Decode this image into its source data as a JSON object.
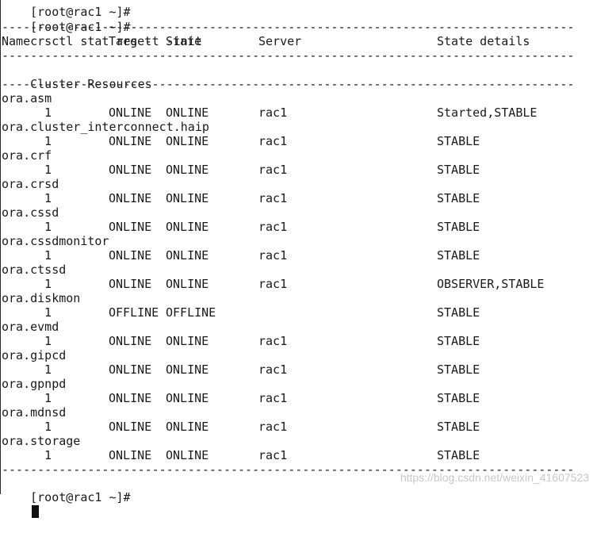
{
  "prev_prompt": "[root@rac1 ~]#",
  "command_prompt": "[root@rac1 ~]#",
  "command": "crsctl stat res -t -init",
  "separator": "--------------------------------------------------------------------------------",
  "headers": {
    "name": "Name",
    "target": "Target",
    "state": "State",
    "server": "Server",
    "details": "State details"
  },
  "section_title": "Cluster Resources",
  "resources": [
    {
      "name": "ora.asm",
      "instance": "1",
      "target": "ONLINE",
      "state": "ONLINE",
      "server": "rac1",
      "details": "Started,STABLE"
    },
    {
      "name": "ora.cluster_interconnect.haip",
      "instance": "1",
      "target": "ONLINE",
      "state": "ONLINE",
      "server": "rac1",
      "details": "STABLE"
    },
    {
      "name": "ora.crf",
      "instance": "1",
      "target": "ONLINE",
      "state": "ONLINE",
      "server": "rac1",
      "details": "STABLE"
    },
    {
      "name": "ora.crsd",
      "instance": "1",
      "target": "ONLINE",
      "state": "ONLINE",
      "server": "rac1",
      "details": "STABLE"
    },
    {
      "name": "ora.cssd",
      "instance": "1",
      "target": "ONLINE",
      "state": "ONLINE",
      "server": "rac1",
      "details": "STABLE"
    },
    {
      "name": "ora.cssdmonitor",
      "instance": "1",
      "target": "ONLINE",
      "state": "ONLINE",
      "server": "rac1",
      "details": "STABLE"
    },
    {
      "name": "ora.ctssd",
      "instance": "1",
      "target": "ONLINE",
      "state": "ONLINE",
      "server": "rac1",
      "details": "OBSERVER,STABLE"
    },
    {
      "name": "ora.diskmon",
      "instance": "1",
      "target": "OFFLINE",
      "state": "OFFLINE",
      "server": "",
      "details": "STABLE"
    },
    {
      "name": "ora.evmd",
      "instance": "1",
      "target": "ONLINE",
      "state": "ONLINE",
      "server": "rac1",
      "details": "STABLE"
    },
    {
      "name": "ora.gipcd",
      "instance": "1",
      "target": "ONLINE",
      "state": "ONLINE",
      "server": "rac1",
      "details": "STABLE"
    },
    {
      "name": "ora.gpnpd",
      "instance": "1",
      "target": "ONLINE",
      "state": "ONLINE",
      "server": "rac1",
      "details": "STABLE"
    },
    {
      "name": "ora.mdnsd",
      "instance": "1",
      "target": "ONLINE",
      "state": "ONLINE",
      "server": "rac1",
      "details": "STABLE"
    },
    {
      "name": "ora.storage",
      "instance": "1",
      "target": "ONLINE",
      "state": "ONLINE",
      "server": "rac1",
      "details": "STABLE"
    }
  ],
  "final_prompt": "[root@rac1 ~]#",
  "watermark": "https://blog.csdn.net/weixin_41607523"
}
